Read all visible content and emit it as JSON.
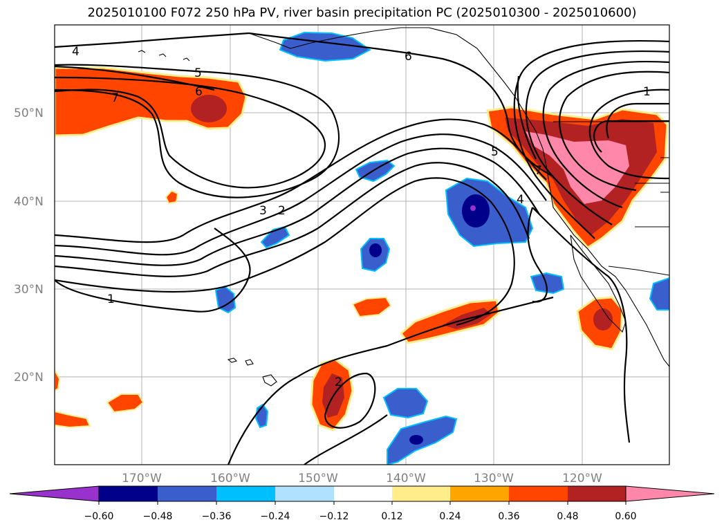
{
  "title": "2025010100 F072 250 hPa PV, river basin precipitation PC (2025010300 - 2025010600)",
  "colors": {
    "neg_060_plus": "#9932cc",
    "neg_048_060": "#00008b",
    "neg_036_048": "#3a5fcd",
    "neg_024_036": "#00bfff",
    "neg_012_024": "#b0e2ff",
    "neutral": "#ffffff",
    "pos_012_024": "#ffec8b",
    "pos_024_036": "#ffa500",
    "pos_036_048": "#ff4500",
    "pos_048_060": "#b22222",
    "pos_060_plus": "#ff88aa",
    "coast": "#000000",
    "grid": "#b0b0b0",
    "contour": "#000000"
  },
  "map": {
    "lat_labels": [
      "50°N",
      "40°N",
      "30°N",
      "20°N"
    ],
    "lon_labels": [
      "170°W",
      "160°W",
      "150°W",
      "140°W",
      "130°W",
      "120°W"
    ],
    "contour_labels": [
      "4",
      "5",
      "6",
      "7",
      "6",
      "1",
      "5",
      "4",
      "7",
      "3",
      "2",
      "1",
      "2"
    ]
  },
  "colorbar": {
    "ticks": [
      "−0.60",
      "−0.48",
      "−0.36",
      "−0.24",
      "−0.12",
      "0.12",
      "0.24",
      "0.36",
      "0.48",
      "0.60"
    ]
  }
}
